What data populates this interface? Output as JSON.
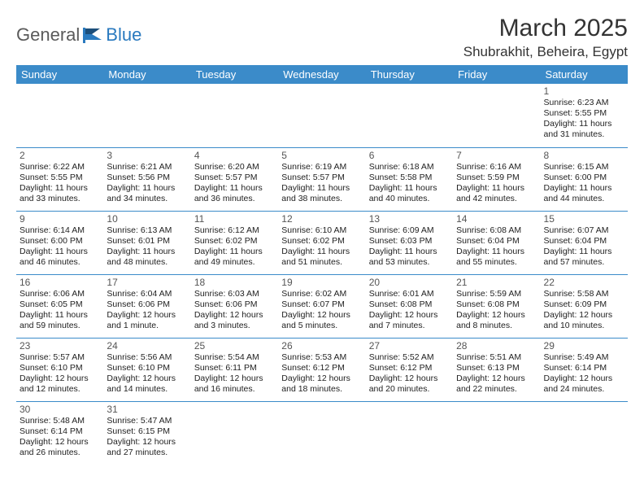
{
  "logo": {
    "text1": "General",
    "text2": "Blue"
  },
  "title": "March 2025",
  "location": "Shubrakhit, Beheira, Egypt",
  "colors": {
    "header_bg": "#3b8bc9",
    "header_text": "#ffffff",
    "border": "#3b8bc9",
    "logo_gray": "#5a5a5a",
    "logo_blue": "#2a7abf",
    "body_bg": "#ffffff"
  },
  "day_headers": [
    "Sunday",
    "Monday",
    "Tuesday",
    "Wednesday",
    "Thursday",
    "Friday",
    "Saturday"
  ],
  "weeks": [
    [
      null,
      null,
      null,
      null,
      null,
      null,
      {
        "n": "1",
        "sr": "Sunrise: 6:23 AM",
        "ss": "Sunset: 5:55 PM",
        "d1": "Daylight: 11 hours",
        "d2": "and 31 minutes."
      }
    ],
    [
      {
        "n": "2",
        "sr": "Sunrise: 6:22 AM",
        "ss": "Sunset: 5:55 PM",
        "d1": "Daylight: 11 hours",
        "d2": "and 33 minutes."
      },
      {
        "n": "3",
        "sr": "Sunrise: 6:21 AM",
        "ss": "Sunset: 5:56 PM",
        "d1": "Daylight: 11 hours",
        "d2": "and 34 minutes."
      },
      {
        "n": "4",
        "sr": "Sunrise: 6:20 AM",
        "ss": "Sunset: 5:57 PM",
        "d1": "Daylight: 11 hours",
        "d2": "and 36 minutes."
      },
      {
        "n": "5",
        "sr": "Sunrise: 6:19 AM",
        "ss": "Sunset: 5:57 PM",
        "d1": "Daylight: 11 hours",
        "d2": "and 38 minutes."
      },
      {
        "n": "6",
        "sr": "Sunrise: 6:18 AM",
        "ss": "Sunset: 5:58 PM",
        "d1": "Daylight: 11 hours",
        "d2": "and 40 minutes."
      },
      {
        "n": "7",
        "sr": "Sunrise: 6:16 AM",
        "ss": "Sunset: 5:59 PM",
        "d1": "Daylight: 11 hours",
        "d2": "and 42 minutes."
      },
      {
        "n": "8",
        "sr": "Sunrise: 6:15 AM",
        "ss": "Sunset: 6:00 PM",
        "d1": "Daylight: 11 hours",
        "d2": "and 44 minutes."
      }
    ],
    [
      {
        "n": "9",
        "sr": "Sunrise: 6:14 AM",
        "ss": "Sunset: 6:00 PM",
        "d1": "Daylight: 11 hours",
        "d2": "and 46 minutes."
      },
      {
        "n": "10",
        "sr": "Sunrise: 6:13 AM",
        "ss": "Sunset: 6:01 PM",
        "d1": "Daylight: 11 hours",
        "d2": "and 48 minutes."
      },
      {
        "n": "11",
        "sr": "Sunrise: 6:12 AM",
        "ss": "Sunset: 6:02 PM",
        "d1": "Daylight: 11 hours",
        "d2": "and 49 minutes."
      },
      {
        "n": "12",
        "sr": "Sunrise: 6:10 AM",
        "ss": "Sunset: 6:02 PM",
        "d1": "Daylight: 11 hours",
        "d2": "and 51 minutes."
      },
      {
        "n": "13",
        "sr": "Sunrise: 6:09 AM",
        "ss": "Sunset: 6:03 PM",
        "d1": "Daylight: 11 hours",
        "d2": "and 53 minutes."
      },
      {
        "n": "14",
        "sr": "Sunrise: 6:08 AM",
        "ss": "Sunset: 6:04 PM",
        "d1": "Daylight: 11 hours",
        "d2": "and 55 minutes."
      },
      {
        "n": "15",
        "sr": "Sunrise: 6:07 AM",
        "ss": "Sunset: 6:04 PM",
        "d1": "Daylight: 11 hours",
        "d2": "and 57 minutes."
      }
    ],
    [
      {
        "n": "16",
        "sr": "Sunrise: 6:06 AM",
        "ss": "Sunset: 6:05 PM",
        "d1": "Daylight: 11 hours",
        "d2": "and 59 minutes."
      },
      {
        "n": "17",
        "sr": "Sunrise: 6:04 AM",
        "ss": "Sunset: 6:06 PM",
        "d1": "Daylight: 12 hours",
        "d2": "and 1 minute."
      },
      {
        "n": "18",
        "sr": "Sunrise: 6:03 AM",
        "ss": "Sunset: 6:06 PM",
        "d1": "Daylight: 12 hours",
        "d2": "and 3 minutes."
      },
      {
        "n": "19",
        "sr": "Sunrise: 6:02 AM",
        "ss": "Sunset: 6:07 PM",
        "d1": "Daylight: 12 hours",
        "d2": "and 5 minutes."
      },
      {
        "n": "20",
        "sr": "Sunrise: 6:01 AM",
        "ss": "Sunset: 6:08 PM",
        "d1": "Daylight: 12 hours",
        "d2": "and 7 minutes."
      },
      {
        "n": "21",
        "sr": "Sunrise: 5:59 AM",
        "ss": "Sunset: 6:08 PM",
        "d1": "Daylight: 12 hours",
        "d2": "and 8 minutes."
      },
      {
        "n": "22",
        "sr": "Sunrise: 5:58 AM",
        "ss": "Sunset: 6:09 PM",
        "d1": "Daylight: 12 hours",
        "d2": "and 10 minutes."
      }
    ],
    [
      {
        "n": "23",
        "sr": "Sunrise: 5:57 AM",
        "ss": "Sunset: 6:10 PM",
        "d1": "Daylight: 12 hours",
        "d2": "and 12 minutes."
      },
      {
        "n": "24",
        "sr": "Sunrise: 5:56 AM",
        "ss": "Sunset: 6:10 PM",
        "d1": "Daylight: 12 hours",
        "d2": "and 14 minutes."
      },
      {
        "n": "25",
        "sr": "Sunrise: 5:54 AM",
        "ss": "Sunset: 6:11 PM",
        "d1": "Daylight: 12 hours",
        "d2": "and 16 minutes."
      },
      {
        "n": "26",
        "sr": "Sunrise: 5:53 AM",
        "ss": "Sunset: 6:12 PM",
        "d1": "Daylight: 12 hours",
        "d2": "and 18 minutes."
      },
      {
        "n": "27",
        "sr": "Sunrise: 5:52 AM",
        "ss": "Sunset: 6:12 PM",
        "d1": "Daylight: 12 hours",
        "d2": "and 20 minutes."
      },
      {
        "n": "28",
        "sr": "Sunrise: 5:51 AM",
        "ss": "Sunset: 6:13 PM",
        "d1": "Daylight: 12 hours",
        "d2": "and 22 minutes."
      },
      {
        "n": "29",
        "sr": "Sunrise: 5:49 AM",
        "ss": "Sunset: 6:14 PM",
        "d1": "Daylight: 12 hours",
        "d2": "and 24 minutes."
      }
    ],
    [
      {
        "n": "30",
        "sr": "Sunrise: 5:48 AM",
        "ss": "Sunset: 6:14 PM",
        "d1": "Daylight: 12 hours",
        "d2": "and 26 minutes."
      },
      {
        "n": "31",
        "sr": "Sunrise: 5:47 AM",
        "ss": "Sunset: 6:15 PM",
        "d1": "Daylight: 12 hours",
        "d2": "and 27 minutes."
      },
      null,
      null,
      null,
      null,
      null
    ]
  ]
}
